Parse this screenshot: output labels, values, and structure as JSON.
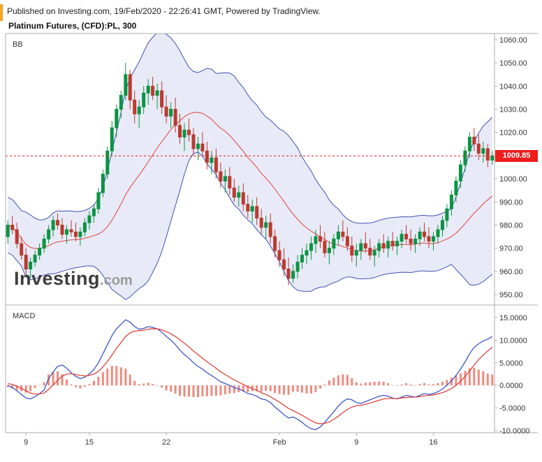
{
  "header": {
    "published_line": "Published on Investing.com, 19/Feb/2020 - 22:26:41 GMT, Powered by TradingView.",
    "symbol_line": "Platinum Futures, (CFD):PL, 300"
  },
  "watermark": {
    "brand": "Investing",
    "suffix": ".com"
  },
  "panes": {
    "main_label": "BB",
    "macd_label": "MACD"
  },
  "price_axis": {
    "last_price_label": "1009.85"
  },
  "colors": {
    "up_candle": "#0b9444",
    "down_candle": "#bb3a30",
    "band_line": "#4152b5",
    "band_fill": "rgba(80,96,190,0.13)",
    "middle_band": "#e0433e",
    "last_price_line": "#e02020",
    "price_tag_bg": "#ee1c1c",
    "macd_line": "#3c55c8",
    "signal_line": "#e0433e",
    "histogram": "#ef8a7f",
    "border": "#adadad",
    "axis_text": "#333333",
    "corner_mark": "#f5a623"
  },
  "chart_data": [
    {
      "type": "candlestick",
      "title": "Platinum Futures, (CFD):PL, 300",
      "indicator": "BB",
      "interval_minutes": 300,
      "ylim": [
        945.5,
        1062.7
      ],
      "y_ticks": [
        "1060.00",
        "1050.00",
        "1040.00",
        "1030.00",
        "1020.00",
        "1010.00",
        "1000.00",
        "990.00",
        "980.00",
        "970.00",
        "960.00",
        "950.00"
      ],
      "x_ticks": [
        {
          "index": 4,
          "label": "9"
        },
        {
          "index": 18,
          "label": "15"
        },
        {
          "index": 35,
          "label": "22"
        },
        {
          "index": 60,
          "label": "Feb"
        },
        {
          "index": 77,
          "label": "9"
        },
        {
          "index": 94,
          "label": "16"
        }
      ],
      "last_price": 1009.85,
      "bollinger": {
        "period": 20,
        "stddev": 2
      },
      "ohlc": [
        [
          975,
          982,
          972,
          980
        ],
        [
          980,
          984,
          976,
          978
        ],
        [
          978,
          981,
          970,
          972
        ],
        [
          972,
          975,
          965,
          967
        ],
        [
          967,
          970,
          958,
          961
        ],
        [
          961,
          966,
          957,
          964
        ],
        [
          964,
          969,
          962,
          967
        ],
        [
          967,
          972,
          965,
          970
        ],
        [
          970,
          976,
          968,
          974
        ],
        [
          974,
          980,
          972,
          978
        ],
        [
          978,
          984,
          975,
          982
        ],
        [
          982,
          985,
          978,
          980
        ],
        [
          980,
          983,
          974,
          976
        ],
        [
          976,
          980,
          972,
          978
        ],
        [
          978,
          982,
          975,
          977
        ],
        [
          977,
          981,
          973,
          975
        ],
        [
          975,
          979,
          971,
          977
        ],
        [
          977,
          983,
          975,
          981
        ],
        [
          981,
          986,
          978,
          984
        ],
        [
          984,
          989,
          981,
          987
        ],
        [
          987,
          996,
          985,
          994
        ],
        [
          994,
          1004,
          992,
          1002
        ],
        [
          1002,
          1014,
          1000,
          1012
        ],
        [
          1012,
          1025,
          1010,
          1022
        ],
        [
          1022,
          1032,
          1018,
          1030
        ],
        [
          1030,
          1038,
          1026,
          1036
        ],
        [
          1036,
          1050,
          1034,
          1045
        ],
        [
          1045,
          1047,
          1030,
          1034
        ],
        [
          1034,
          1038,
          1024,
          1028
        ],
        [
          1028,
          1034,
          1022,
          1031
        ],
        [
          1031,
          1040,
          1028,
          1037
        ],
        [
          1037,
          1043,
          1032,
          1040
        ],
        [
          1040,
          1044,
          1034,
          1036
        ],
        [
          1036,
          1041,
          1030,
          1038
        ],
        [
          1038,
          1042,
          1028,
          1031
        ],
        [
          1031,
          1036,
          1024,
          1027
        ],
        [
          1027,
          1033,
          1022,
          1030
        ],
        [
          1030,
          1035,
          1020,
          1023
        ],
        [
          1023,
          1028,
          1015,
          1018
        ],
        [
          1018,
          1024,
          1012,
          1021
        ],
        [
          1021,
          1026,
          1016,
          1019
        ],
        [
          1019,
          1022,
          1010,
          1013
        ],
        [
          1013,
          1018,
          1008,
          1015
        ],
        [
          1015,
          1020,
          1010,
          1012
        ],
        [
          1012,
          1016,
          1004,
          1007
        ],
        [
          1007,
          1012,
          1002,
          1009
        ],
        [
          1009,
          1013,
          1000,
          1003
        ],
        [
          1003,
          1007,
          996,
          999
        ],
        [
          999,
          1004,
          994,
          1001
        ],
        [
          1001,
          1005,
          993,
          996
        ],
        [
          996,
          1000,
          990,
          992
        ],
        [
          992,
          997,
          988,
          994
        ],
        [
          994,
          998,
          986,
          989
        ],
        [
          989,
          993,
          983,
          986
        ],
        [
          986,
          991,
          981,
          988
        ],
        [
          988,
          992,
          980,
          983
        ],
        [
          983,
          987,
          976,
          979
        ],
        [
          979,
          984,
          974,
          981
        ],
        [
          981,
          985,
          972,
          975
        ],
        [
          975,
          978,
          966,
          969
        ],
        [
          969,
          973,
          962,
          965
        ],
        [
          965,
          970,
          958,
          961
        ],
        [
          961,
          966,
          954,
          957
        ],
        [
          957,
          963,
          955,
          960
        ],
        [
          960,
          967,
          957,
          964
        ],
        [
          964,
          970,
          961,
          967
        ],
        [
          967,
          972,
          963,
          969
        ],
        [
          969,
          975,
          965,
          972
        ],
        [
          972,
          978,
          968,
          975
        ],
        [
          975,
          980,
          970,
          973
        ],
        [
          973,
          977,
          966,
          968
        ],
        [
          968,
          973,
          963,
          970
        ],
        [
          970,
          976,
          967,
          974
        ],
        [
          974,
          980,
          971,
          977
        ],
        [
          977,
          982,
          973,
          975
        ],
        [
          975,
          979,
          969,
          971
        ],
        [
          971,
          975,
          964,
          967
        ],
        [
          967,
          972,
          962,
          969
        ],
        [
          969,
          974,
          965,
          972
        ],
        [
          972,
          977,
          968,
          970
        ],
        [
          970,
          974,
          965,
          967
        ],
        [
          967,
          971,
          962,
          969
        ],
        [
          969,
          974,
          966,
          972
        ],
        [
          972,
          976,
          968,
          970
        ],
        [
          970,
          975,
          966,
          973
        ],
        [
          973,
          977,
          969,
          971
        ],
        [
          971,
          975,
          967,
          973
        ],
        [
          973,
          978,
          970,
          976
        ],
        [
          976,
          980,
          972,
          974
        ],
        [
          974,
          978,
          969,
          972
        ],
        [
          972,
          976,
          968,
          974
        ],
        [
          974,
          979,
          971,
          977
        ],
        [
          977,
          981,
          973,
          975
        ],
        [
          975,
          979,
          970,
          973
        ],
        [
          973,
          977,
          969,
          975
        ],
        [
          975,
          980,
          972,
          978
        ],
        [
          978,
          984,
          975,
          982
        ],
        [
          982,
          989,
          979,
          987
        ],
        [
          987,
          995,
          984,
          993
        ],
        [
          993,
          1001,
          990,
          999
        ],
        [
          999,
          1008,
          996,
          1006
        ],
        [
          1006,
          1014,
          1003,
          1012
        ],
        [
          1012,
          1020,
          1009,
          1018
        ],
        [
          1018,
          1022,
          1012,
          1015
        ],
        [
          1015,
          1019,
          1008,
          1011
        ],
        [
          1011,
          1016,
          1007,
          1013
        ],
        [
          1013,
          1015,
          1005,
          1008
        ],
        [
          1008,
          1012,
          1006,
          1009.85
        ]
      ]
    },
    {
      "type": "line",
      "title": "MACD",
      "ylim": [
        -11.5,
        16.0
      ],
      "y_ticks": [
        "15.0000",
        "10.0000",
        "5.0000",
        "0.0000",
        "-5.0000",
        "-10.0000"
      ],
      "series": [
        {
          "name": "MACD",
          "color": "#3c55c8",
          "values": [
            0,
            -0.5,
            -1.2,
            -2.0,
            -2.8,
            -3.0,
            -2.5,
            -1.8,
            -1.0,
            1.5,
            3.0,
            4.2,
            4.5,
            3.8,
            2.8,
            2.0,
            1.5,
            1.8,
            2.5,
            3.5,
            5.0,
            7.0,
            9.0,
            11.0,
            12.5,
            13.5,
            14.5,
            14.0,
            13.0,
            12.4,
            12.6,
            13.0,
            12.8,
            12.5,
            11.8,
            10.8,
            10.0,
            9.0,
            7.8,
            6.8,
            6.0,
            5.0,
            4.2,
            3.6,
            2.8,
            2.2,
            1.5,
            0.8,
            0.4,
            0.0,
            -0.5,
            -0.8,
            -1.2,
            -1.8,
            -2.0,
            -2.4,
            -3.0,
            -3.2,
            -3.8,
            -4.8,
            -5.6,
            -6.5,
            -7.2,
            -7.0,
            -7.5,
            -8.2,
            -9.0,
            -9.6,
            -9.8,
            -9.2,
            -8.2,
            -7.0,
            -5.8,
            -4.6,
            -3.6,
            -3.0,
            -3.2,
            -3.8,
            -4.0,
            -3.6,
            -3.2,
            -2.8,
            -2.4,
            -2.2,
            -2.4,
            -2.8,
            -3.0,
            -2.6,
            -2.2,
            -2.4,
            -2.6,
            -2.2,
            -1.8,
            -2.0,
            -1.8,
            -1.4,
            -0.8,
            0.0,
            1.0,
            2.2,
            3.6,
            5.2,
            7.0,
            8.4,
            9.2,
            9.8,
            10.2,
            10.8
          ]
        },
        {
          "name": "Signal",
          "color": "#e0433e",
          "values": [
            0.4,
            0.2,
            -0.2,
            -0.7,
            -1.2,
            -1.7,
            -1.9,
            -1.9,
            -1.7,
            -0.9,
            0.1,
            1.1,
            2.0,
            2.5,
            2.6,
            2.4,
            2.2,
            2.1,
            2.2,
            2.5,
            3.1,
            4.1,
            5.3,
            6.7,
            8.2,
            9.5,
            10.8,
            11.6,
            12.0,
            12.1,
            12.2,
            12.4,
            12.5,
            12.5,
            12.3,
            11.9,
            11.4,
            10.8,
            10.1,
            9.3,
            8.5,
            7.6,
            6.8,
            6.0,
            5.2,
            4.5,
            3.8,
            3.0,
            2.4,
            1.8,
            1.2,
            0.7,
            0.2,
            -0.3,
            -0.7,
            -1.1,
            -1.6,
            -2.0,
            -2.5,
            -3.1,
            -3.7,
            -4.4,
            -5.1,
            -5.6,
            -6.1,
            -6.6,
            -7.2,
            -7.8,
            -8.3,
            -8.5,
            -8.4,
            -8.1,
            -7.5,
            -6.8,
            -6.0,
            -5.3,
            -4.8,
            -4.5,
            -4.4,
            -4.2,
            -3.9,
            -3.6,
            -3.3,
            -3.0,
            -2.9,
            -2.9,
            -2.9,
            -2.8,
            -2.7,
            -2.6,
            -2.6,
            -2.5,
            -2.3,
            -2.2,
            -2.1,
            -1.9,
            -1.6,
            -1.2,
            -0.7,
            0.0,
            0.9,
            2.0,
            3.2,
            4.5,
            5.7,
            6.7,
            7.6,
            8.4
          ]
        }
      ],
      "histogram": {
        "name": "MACD Histogram",
        "color": "#ef8a7f",
        "derivation": "macd-signal"
      }
    }
  ]
}
